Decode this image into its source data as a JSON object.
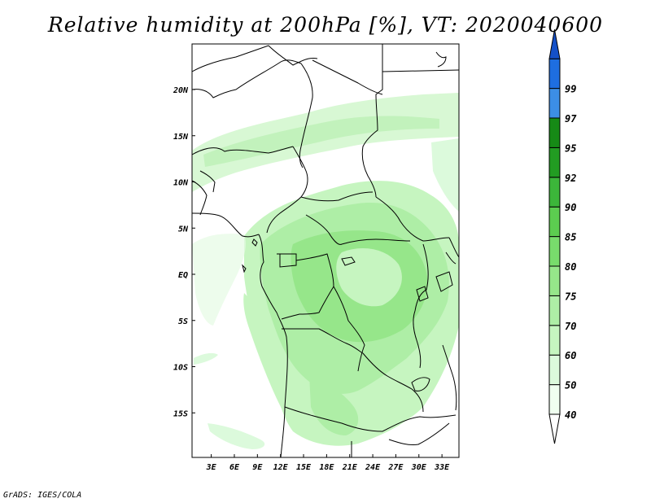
{
  "title": "Relative humidity at 200hPa [%], VT: 2020040600",
  "footer": "GrADS: IGES/COLA",
  "map": {
    "lat_labels": [
      {
        "lat": 20,
        "text": "20N"
      },
      {
        "lat": 15,
        "text": "15N"
      },
      {
        "lat": 10,
        "text": "10N"
      },
      {
        "lat": 5,
        "text": "5N"
      },
      {
        "lat": 0,
        "text": "EQ"
      },
      {
        "lat": -5,
        "text": "5S"
      },
      {
        "lat": -10,
        "text": "10S"
      },
      {
        "lat": -15,
        "text": "15S"
      }
    ],
    "lon_labels": [
      {
        "lon": 3,
        "text": "3E"
      },
      {
        "lon": 6,
        "text": "6E"
      },
      {
        "lon": 9,
        "text": "9E"
      },
      {
        "lon": 12,
        "text": "12E"
      },
      {
        "lon": 15,
        "text": "15E"
      },
      {
        "lon": 18,
        "text": "18E"
      },
      {
        "lon": 21,
        "text": "21E"
      },
      {
        "lon": 24,
        "text": "24E"
      },
      {
        "lon": 27,
        "text": "27E"
      },
      {
        "lon": 30,
        "text": "30E"
      },
      {
        "lon": 33,
        "text": "33E"
      }
    ]
  },
  "colorbar": {
    "bins": [
      {
        "label": "40",
        "color": "#f0fff0"
      },
      {
        "label": "50",
        "color": "#dcfadc"
      },
      {
        "label": "60",
        "color": "#c6f5c0"
      },
      {
        "label": "70",
        "color": "#aeeea6"
      },
      {
        "label": "75",
        "color": "#96e68a"
      },
      {
        "label": "80",
        "color": "#78dc6c"
      },
      {
        "label": "85",
        "color": "#5ccd50"
      },
      {
        "label": "90",
        "color": "#3cb63a"
      },
      {
        "label": "92",
        "color": "#229c22"
      },
      {
        "label": "95",
        "color": "#168a16"
      },
      {
        "label": "97",
        "color": "#3c8ee6"
      },
      {
        "label": "99",
        "color": "#1e6ee0"
      }
    ],
    "top_color": "#1450c8"
  }
}
